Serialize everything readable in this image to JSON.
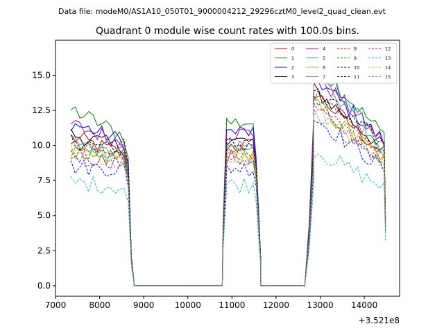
{
  "chart_data": {
    "type": "line",
    "suptitle": "Data file: modeM0/AS1A10_050T01_9000004212_29296cztM0_level2_quad_clean.evt",
    "title": "Quadrant 0 module wise count rates with 100.0s bins.",
    "xlabel": "",
    "ylabel": "",
    "x_offset_label": "+3.521e8",
    "xlim": [
      7000,
      14800
    ],
    "ylim": [
      -0.75,
      17.5
    ],
    "xticks": [
      7000,
      8000,
      9000,
      10000,
      11000,
      12000,
      13000,
      14000
    ],
    "yticks": [
      0.0,
      2.5,
      5.0,
      7.5,
      10.0,
      12.5,
      15.0
    ],
    "xtick_labels": [
      "7000",
      "8000",
      "9000",
      "10000",
      "11000",
      "12000",
      "13000",
      "14000"
    ],
    "ytick_labels": [
      "0.0",
      "2.5",
      "5.0",
      "7.5",
      "10.0",
      "12.5",
      "15.0"
    ],
    "legend_position": "top-right",
    "series": [
      {
        "name": "0",
        "color": "#cc0000",
        "dashed": false,
        "level": 10.6,
        "peak": 13.8,
        "low": 9.4
      },
      {
        "name": "1",
        "color": "#008000",
        "dashed": false,
        "level": 12.6,
        "peak": 16.0,
        "low": 10.7
      },
      {
        "name": "2",
        "color": "#0000ff",
        "dashed": false,
        "level": 11.6,
        "peak": 14.9,
        "low": 10.3
      },
      {
        "name": "3",
        "color": "#000000",
        "dashed": false,
        "level": 10.8,
        "peak": 14.0,
        "low": 9.8
      },
      {
        "name": "4",
        "color": "#bb00bb",
        "dashed": false,
        "level": 11.5,
        "peak": 15.2,
        "low": 10.2
      },
      {
        "name": "5",
        "color": "#00c0a0",
        "dashed": false,
        "level": 10.1,
        "peak": 16.5,
        "low": 9.5
      },
      {
        "name": "6",
        "color": "#c8b400",
        "dashed": false,
        "level": 9.4,
        "peak": 13.0,
        "low": 9.0
      },
      {
        "name": "7",
        "color": "#808080",
        "dashed": false,
        "level": 10.3,
        "peak": 15.4,
        "low": 9.6
      },
      {
        "name": "8",
        "color": "#cc0000",
        "dashed": true,
        "level": 9.9,
        "peak": 13.6,
        "low": 9.2
      },
      {
        "name": "9",
        "color": "#008000",
        "dashed": true,
        "level": 9.7,
        "peak": 13.2,
        "low": 9.0
      },
      {
        "name": "10",
        "color": "#0000ff",
        "dashed": true,
        "level": 8.5,
        "peak": 12.0,
        "low": 8.3
      },
      {
        "name": "11",
        "color": "#000000",
        "dashed": true,
        "level": 10.2,
        "peak": 13.9,
        "low": 10.0
      },
      {
        "name": "12",
        "color": "#bb00bb",
        "dashed": true,
        "level": 9.3,
        "peak": 12.8,
        "low": 8.8
      },
      {
        "name": "13",
        "color": "#00b8c8",
        "dashed": true,
        "level": 7.4,
        "peak": 9.7,
        "low": 7.0
      },
      {
        "name": "14",
        "color": "#c8b400",
        "dashed": true,
        "level": 9.5,
        "peak": 12.6,
        "low": 8.9
      },
      {
        "name": "15",
        "color": "#808080",
        "dashed": true,
        "level": 9.1,
        "peak": 12.4,
        "low": 8.7
      }
    ],
    "segments": [
      {
        "kind": "active",
        "start": 7350,
        "end": 8550
      },
      {
        "kind": "fall",
        "x": [
          8650,
          8720,
          8780
        ]
      },
      {
        "kind": "zero",
        "start": 8780,
        "end": 10780
      },
      {
        "kind": "rise",
        "x": [
          10800,
          10880
        ]
      },
      {
        "kind": "active",
        "start": 10880,
        "end": 11450
      },
      {
        "kind": "fall",
        "x": [
          11550,
          11650
        ]
      },
      {
        "kind": "zero",
        "start": 11650,
        "end": 12650
      },
      {
        "kind": "rise",
        "x": [
          12750,
          12850
        ]
      },
      {
        "kind": "active",
        "start": 12850,
        "end": 14400
      },
      {
        "kind": "end",
        "x": [
          14480
        ]
      }
    ]
  }
}
